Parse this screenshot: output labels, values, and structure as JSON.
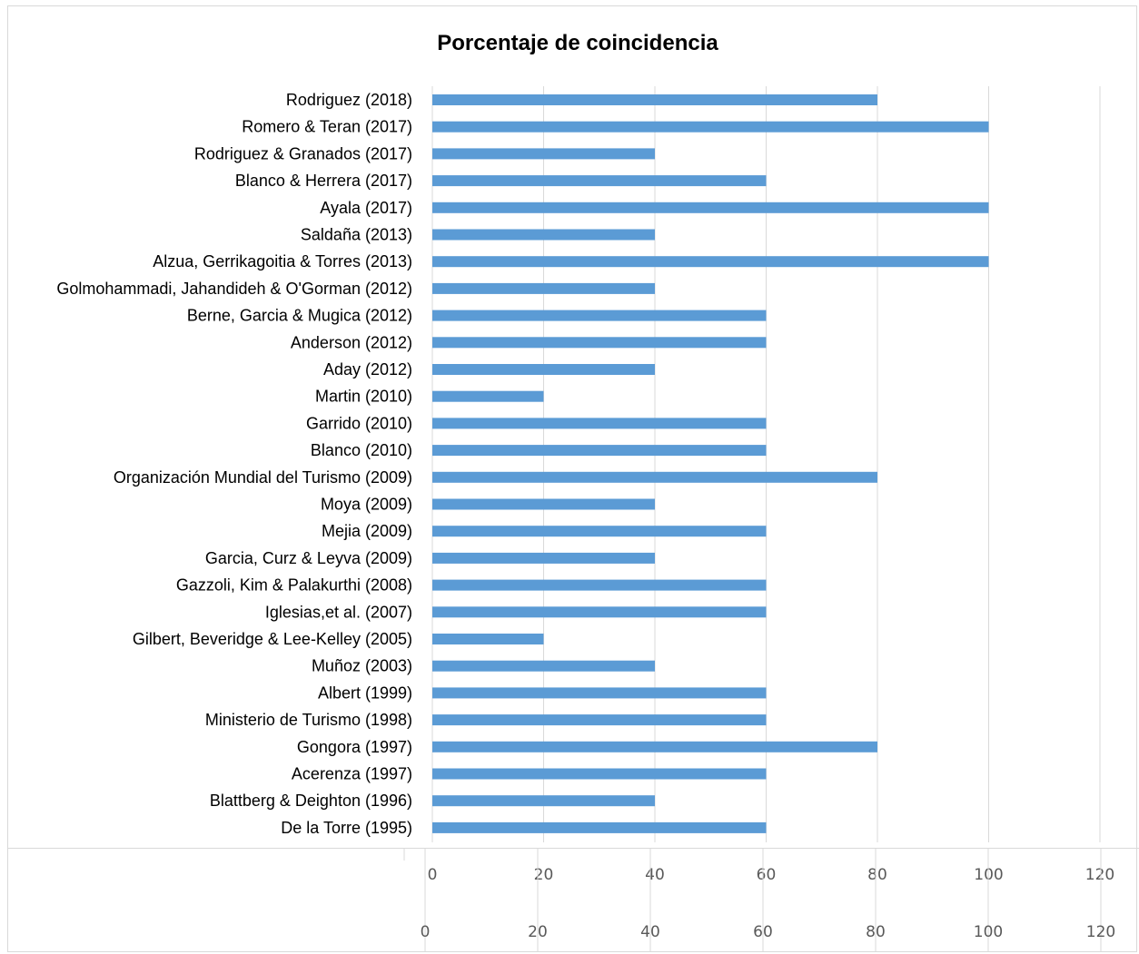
{
  "chart_data": {
    "type": "bar",
    "orientation": "horizontal",
    "title": "Porcentaje de coincidencia",
    "xlabel": "",
    "ylabel": "",
    "xlim": [
      0,
      120
    ],
    "xticks": [
      "0",
      "20",
      "40",
      "60",
      "80",
      "100",
      "120"
    ],
    "grid": true,
    "legend": "none",
    "bar_color": "#5b9bd5",
    "categories": [
      "Rodriguez (2018)",
      "Romero & Teran (2017)",
      "Rodriguez & Granados (2017)",
      "Blanco & Herrera (2017)",
      "Ayala (2017)",
      "Saldaña (2013)",
      "Alzua, Gerrikagoitia & Torres (2013)",
      "Golmohammadi, Jahandideh & O'Gorman (2012)",
      "Berne, Garcia & Mugica (2012)",
      "Anderson (2012)",
      "Aday (2012)",
      "Martin (2010)",
      "Garrido (2010)",
      "Blanco (2010)",
      "Organización Mundial del Turismo (2009)",
      "Moya (2009)",
      "Mejia (2009)",
      "Garcia, Curz & Leyva (2009)",
      "Gazzoli, Kim & Palakurthi (2008)",
      "Iglesias,et al. (2007)",
      "Gilbert, Beveridge & Lee-Kelley (2005)",
      "Muñoz (2003)",
      "Albert (1999)",
      "Ministerio de Turismo (1998)",
      "Gongora (1997)",
      "Acerenza (1997)",
      "Blattberg & Deighton (1996)",
      "De la Torre (1995)"
    ],
    "values": [
      80,
      100,
      40,
      60,
      100,
      40,
      100,
      40,
      60,
      60,
      40,
      20,
      60,
      60,
      80,
      40,
      60,
      40,
      60,
      60,
      20,
      40,
      60,
      60,
      80,
      60,
      40,
      60
    ]
  },
  "secondary_axis": {
    "ticks": [
      "0",
      "20",
      "40",
      "60",
      "80",
      "100",
      "120"
    ]
  }
}
